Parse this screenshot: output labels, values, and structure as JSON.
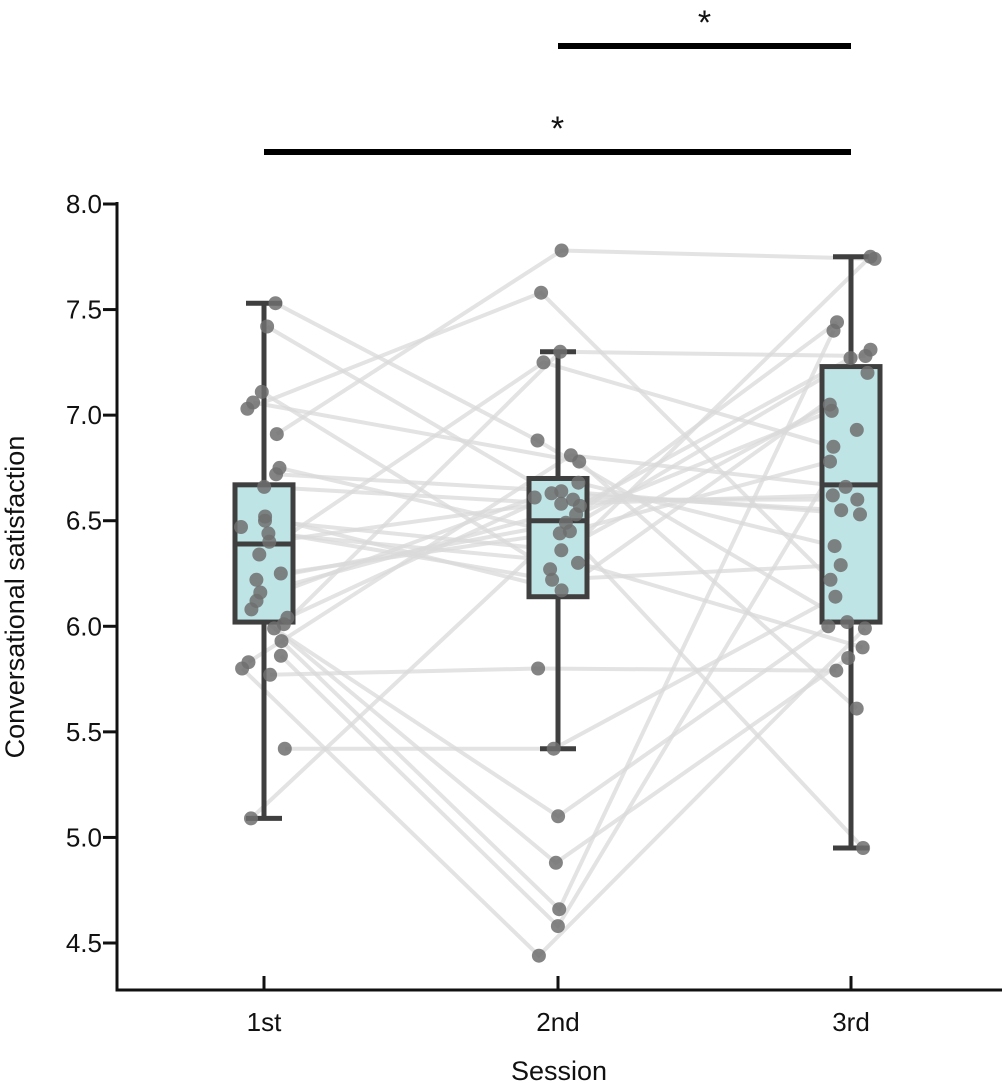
{
  "chart_data": {
    "type": "box",
    "xlabel": "Session",
    "ylabel": "Conversational satisfaction",
    "categories": [
      "1st",
      "2nd",
      "3rd"
    ],
    "ylim": [
      4.5,
      8.0
    ],
    "yticks": [
      "4.5",
      "5.0",
      "5.5",
      "6.0",
      "6.5",
      "7.0",
      "7.5",
      "8.0"
    ],
    "grid": false,
    "colors": {
      "box_fill": "#bfe4e6",
      "box_stroke": "#3f3f3f",
      "points": "#6e6e6e",
      "lines": "#d9d9d9"
    },
    "boxes": [
      {
        "category": "1st",
        "whisker_low": 5.09,
        "q1": 6.02,
        "median": 6.39,
        "q3": 6.67,
        "whisker_high": 7.53
      },
      {
        "category": "2nd",
        "whisker_low": 5.42,
        "q1": 6.14,
        "median": 6.5,
        "q3": 6.7,
        "whisker_high": 7.3
      },
      {
        "category": "3rd",
        "whisker_low": 4.95,
        "q1": 6.02,
        "median": 6.67,
        "q3": 7.23,
        "whisker_high": 7.75
      }
    ],
    "participants": [
      [
        7.53,
        6.88,
        6.02
      ],
      [
        7.42,
        6.63,
        6.55
      ],
      [
        7.11,
        6.27,
        7.75
      ],
      [
        7.06,
        6.78,
        5.61
      ],
      [
        6.75,
        6.44,
        7.31
      ],
      [
        6.72,
        6.64,
        6.53
      ],
      [
        6.66,
        6.58,
        6.62
      ],
      [
        6.52,
        6.17,
        7.2
      ],
      [
        6.5,
        6.36,
        7.05
      ],
      [
        6.47,
        6.22,
        6.29
      ],
      [
        6.44,
        6.3,
        5.9
      ],
      [
        6.4,
        6.6,
        6.6
      ],
      [
        6.34,
        7.25,
        6.85
      ],
      [
        6.25,
        6.45,
        6.78
      ],
      [
        6.22,
        6.49,
        7.44
      ],
      [
        6.16,
        6.57,
        7.27
      ],
      [
        6.08,
        4.88,
        5.85
      ],
      [
        6.04,
        6.68,
        6.38
      ],
      [
        5.99,
        5.1,
        6.0
      ],
      [
        5.93,
        4.66,
        7.4
      ],
      [
        5.86,
        4.58,
        6.93
      ],
      [
        5.8,
        4.44,
        5.99
      ],
      [
        5.77,
        5.8,
        5.79
      ],
      [
        5.42,
        5.42,
        6.14
      ],
      [
        5.09,
        6.53,
        7.02
      ],
      [
        6.91,
        7.78,
        7.74
      ],
      [
        7.03,
        7.58,
        6.22
      ],
      [
        6.01,
        7.3,
        7.28
      ],
      [
        5.83,
        6.81,
        6.66
      ],
      [
        6.12,
        6.61,
        4.95
      ]
    ]
  },
  "significance": [
    {
      "from": "2nd",
      "to": "3rd",
      "label": "*"
    },
    {
      "from": "1st",
      "to": "3rd",
      "label": "*"
    }
  ]
}
